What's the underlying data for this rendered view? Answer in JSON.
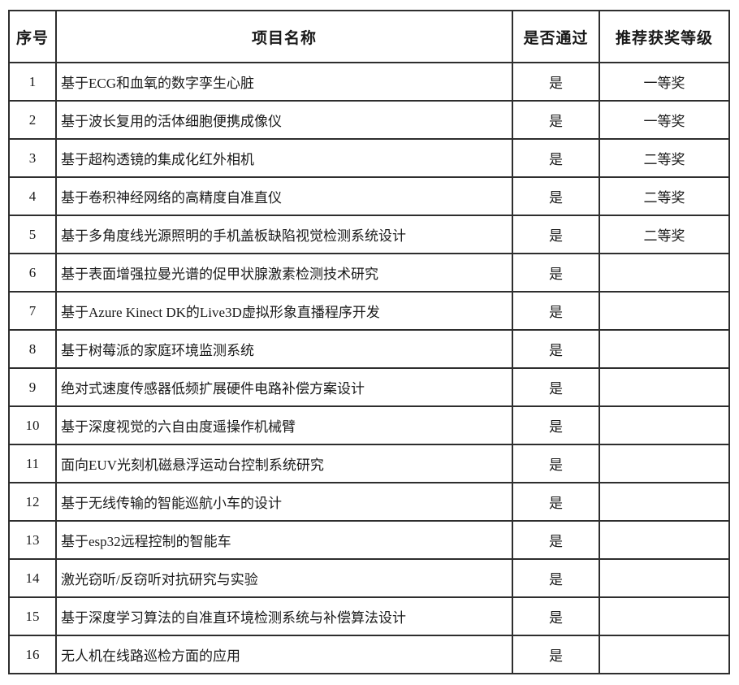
{
  "table": {
    "headers": {
      "no": "序号",
      "name": "项目名称",
      "pass": "是否通过",
      "award": "推荐获奖等级"
    },
    "rows": [
      {
        "no": "1",
        "name": "基于ECG和血氧的数字孪生心脏",
        "pass": "是",
        "award": "一等奖"
      },
      {
        "no": "2",
        "name": "基于波长复用的活体细胞便携成像仪",
        "pass": "是",
        "award": "一等奖"
      },
      {
        "no": "3",
        "name": "基于超构透镜的集成化红外相机",
        "pass": "是",
        "award": "二等奖"
      },
      {
        "no": "4",
        "name": "基于卷积神经网络的高精度自准直仪",
        "pass": "是",
        "award": "二等奖"
      },
      {
        "no": "5",
        "name": "基于多角度线光源照明的手机盖板缺陷视觉检测系统设计",
        "pass": "是",
        "award": "二等奖"
      },
      {
        "no": "6",
        "name": "基于表面增强拉曼光谱的促甲状腺激素检测技术研究",
        "pass": "是",
        "award": ""
      },
      {
        "no": "7",
        "name": "基于Azure Kinect DK的Live3D虚拟形象直播程序开发",
        "pass": "是",
        "award": ""
      },
      {
        "no": "8",
        "name": "基于树莓派的家庭环境监测系统",
        "pass": "是",
        "award": ""
      },
      {
        "no": "9",
        "name": "绝对式速度传感器低频扩展硬件电路补偿方案设计",
        "pass": "是",
        "award": ""
      },
      {
        "no": "10",
        "name": "基于深度视觉的六自由度遥操作机械臂",
        "pass": "是",
        "award": ""
      },
      {
        "no": "11",
        "name": "面向EUV光刻机磁悬浮运动台控制系统研究",
        "pass": "是",
        "award": ""
      },
      {
        "no": "12",
        "name": "基于无线传输的智能巡航小车的设计",
        "pass": "是",
        "award": ""
      },
      {
        "no": "13",
        "name": "基于esp32远程控制的智能车",
        "pass": "是",
        "award": ""
      },
      {
        "no": "14",
        "name": "激光窃听/反窃听对抗研究与实验",
        "pass": "是",
        "award": ""
      },
      {
        "no": "15",
        "name": "基于深度学习算法的自准直环境检测系统与补偿算法设计",
        "pass": "是",
        "award": ""
      },
      {
        "no": "16",
        "name": "无人机在线路巡检方面的应用",
        "pass": "是",
        "award": ""
      }
    ]
  }
}
